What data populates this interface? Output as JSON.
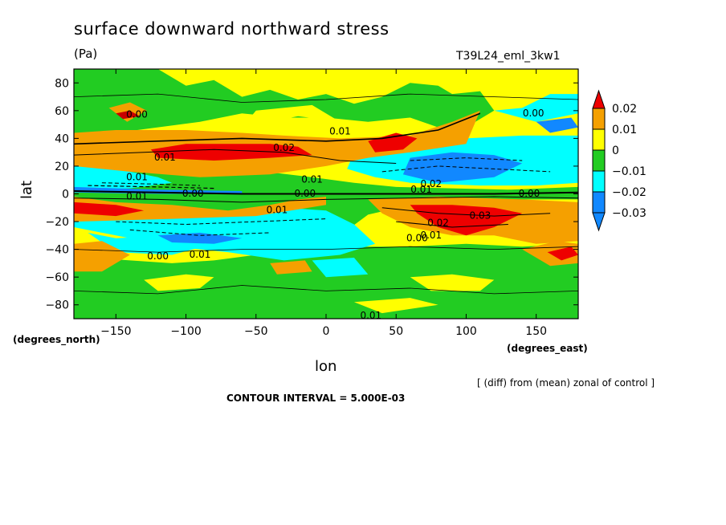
{
  "chart_data": {
    "type": "heatmap",
    "title": "surface downward northward stress",
    "units": "(Pa)",
    "run_label": "T39L24_eml_3kw1",
    "xlabel": "lon",
    "ylabel": "lat",
    "x_unit_label": "(degrees_east)",
    "y_unit_label": "(degrees_north)",
    "xlim": [
      -180,
      180
    ],
    "ylim": [
      -90,
      90
    ],
    "x_ticks": [
      -150,
      -100,
      -50,
      0,
      50,
      100,
      150
    ],
    "y_ticks": [
      -80,
      -60,
      -40,
      -20,
      0,
      20,
      40,
      60,
      80
    ],
    "colorbar": {
      "labels": [
        "0.02",
        "0.01",
        "0",
        "−0.01",
        "−0.02",
        "−0.03"
      ],
      "colors": [
        "#ee0000",
        "#f5a000",
        "#ffff00",
        "#22cc22",
        "#00ffff",
        "#1188ff",
        "#c80000"
      ]
    },
    "contour_labels": [
      {
        "text": "0.00",
        "lon": -135,
        "lat": 57
      },
      {
        "text": "0.01",
        "lon": -115,
        "lat": 26
      },
      {
        "text": "0.01",
        "lon": -135,
        "lat": 12
      },
      {
        "text": "0.01",
        "lon": -135,
        "lat": -2
      },
      {
        "text": "0.00",
        "lon": -95,
        "lat": 0
      },
      {
        "text": "0.02",
        "lon": -30,
        "lat": 33
      },
      {
        "text": "0.01",
        "lon": 10,
        "lat": 45
      },
      {
        "text": "0.01",
        "lon": -10,
        "lat": 10
      },
      {
        "text": "0.00",
        "lon": -15,
        "lat": 0
      },
      {
        "text": "0.01",
        "lon": -35,
        "lat": -12
      },
      {
        "text": "0.00",
        "lon": -120,
        "lat": -45
      },
      {
        "text": "0.01",
        "lon": -90,
        "lat": -44
      },
      {
        "text": "0.01",
        "lon": 32,
        "lat": -88
      },
      {
        "text": "0.00",
        "lon": 148,
        "lat": 58
      },
      {
        "text": "0.02",
        "lon": 75,
        "lat": 7
      },
      {
        "text": "0.01",
        "lon": 68,
        "lat": 3
      },
      {
        "text": "0.00",
        "lon": 145,
        "lat": 0
      },
      {
        "text": "0.03",
        "lon": 110,
        "lat": -16
      },
      {
        "text": "0.02",
        "lon": 80,
        "lat": -21
      },
      {
        "text": "0.01",
        "lon": 75,
        "lat": -30
      },
      {
        "text": "0.00",
        "lon": 65,
        "lat": -32
      }
    ]
  },
  "annotations": {
    "note": "[ (diff) from (mean) zonal of control ]",
    "contour_interval": "CONTOUR INTERVAL = 5.000E-03"
  }
}
